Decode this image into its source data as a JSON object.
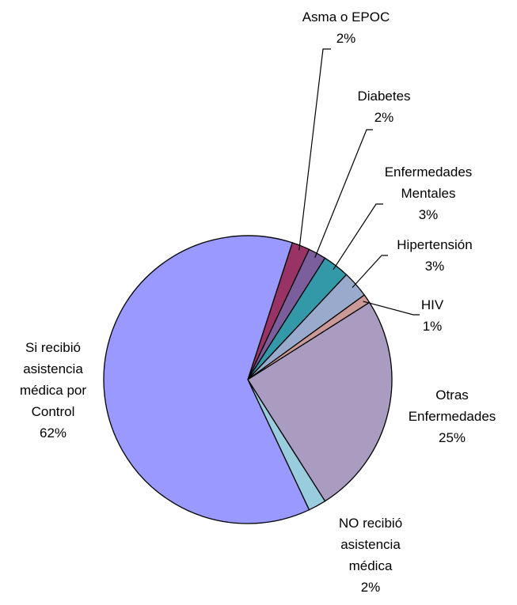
{
  "chart_data": {
    "type": "pie",
    "categories": [
      "Asma o EPOC",
      "Diabetes",
      "Enfermedades Mentales",
      "Hipertensión",
      "HIV",
      "Otras Enfermedades",
      "NO recibió asistencia médica",
      "Si recibió asistencia médica por Control"
    ],
    "values": [
      2,
      2,
      3,
      3,
      1,
      25,
      2,
      62
    ],
    "value_labels": [
      "2%",
      "2%",
      "3%",
      "3%",
      "1%",
      "25%",
      "2%",
      "62%"
    ],
    "colors": [
      "#993366",
      "#7a5f9c",
      "#3399a8",
      "#99aacc",
      "#cc9999",
      "#a99cc0",
      "#99ccdd",
      "#9999ff"
    ]
  }
}
